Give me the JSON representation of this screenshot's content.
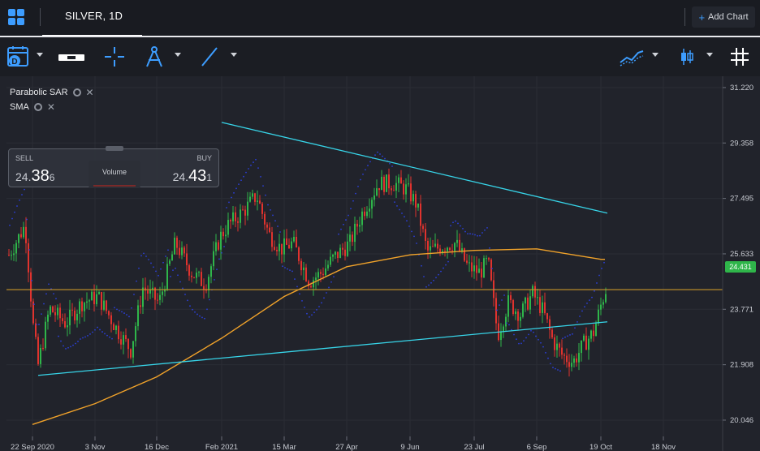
{
  "header": {
    "tab_title": "SILVER, 1D",
    "add_chart_label": "Add Chart"
  },
  "toolbar": {
    "date_icon_letter": "D"
  },
  "indicators": [
    {
      "name": "Parabolic SAR"
    },
    {
      "name": "SMA"
    }
  ],
  "trade": {
    "sell_label": "SELL",
    "buy_label": "BUY",
    "sell_int": "24.",
    "sell_big": "38",
    "sell_small": "6",
    "buy_int": "24.",
    "buy_big": "43",
    "buy_small": "1",
    "volume_label": "Volume"
  },
  "current_price": "24.431",
  "colors": {
    "up": "#2fb54a",
    "down": "#e0332e",
    "sma": "#f0a22a",
    "trendline": "#37d4e8",
    "sar": "#2b3fd6",
    "accent": "#3d9dff"
  },
  "chart_data": {
    "type": "candlestick",
    "symbol": "SILVER",
    "timeframe": "1D",
    "y_ticks": [
      "31.220",
      "29.358",
      "27.495",
      "25.633",
      "23.771",
      "21.908",
      "20.046"
    ],
    "x_ticks": [
      "22 Sep 2020",
      "3 Nov",
      "16 Dec",
      "Feb 2021",
      "15 Mar",
      "27 Apr",
      "9 Jun",
      "23 Jul",
      "6 Sep",
      "19 Oct",
      "18 Nov"
    ],
    "ylim": [
      19.5,
      31.6
    ],
    "last_price": 24.431,
    "horizontal_line": 24.431,
    "trendlines": [
      {
        "from": [
          "Feb 2021",
          30.05
        ],
        "to": [
          "19 Oct",
          27.0
        ]
      },
      {
        "from": [
          "22 Sep 2020",
          21.55
        ],
        "to": [
          "19 Oct",
          23.35
        ]
      }
    ],
    "sma_points": [
      [
        "22 Sep 2020",
        19.9
      ],
      [
        "3 Nov",
        20.6
      ],
      [
        "16 Dec",
        21.5
      ],
      [
        "Feb 2021",
        22.8
      ],
      [
        "15 Mar",
        24.2
      ],
      [
        "27 Apr",
        25.2
      ],
      [
        "9 Jun",
        25.6
      ],
      [
        "23 Jul",
        25.75
      ],
      [
        "6 Sep",
        25.8
      ],
      [
        "19 Oct",
        25.45
      ]
    ]
  }
}
